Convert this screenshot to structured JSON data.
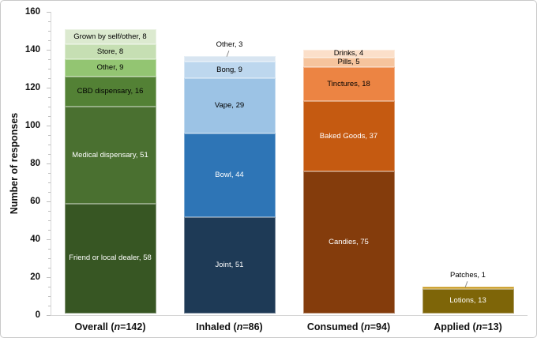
{
  "figure": {
    "background": "#ffffff",
    "border_color": "#c9c9c9"
  },
  "chart_data": {
    "type": "bar",
    "stacked": true,
    "title": "",
    "xlabel": "",
    "ylabel": "Number of responses",
    "ylim": [
      0,
      160
    ],
    "y_major_tick_step": 20,
    "y_minor_tick_step": 5,
    "grid": false,
    "legend": "none",
    "axis_color": "#d6d6d6",
    "tick_color": "#bfbfbf",
    "categories": [
      {
        "label": "Overall",
        "n": "142"
      },
      {
        "label": "Inhaled",
        "n": "86"
      },
      {
        "label": "Consumed",
        "n": "94"
      },
      {
        "label": "Applied",
        "n": "13"
      }
    ],
    "bars": [
      {
        "category": "Overall",
        "segments": [
          {
            "label": "Friend or local dealer",
            "value": 58,
            "color": "#375623",
            "text_color": "#ffffff"
          },
          {
            "label": "Medical dispensary",
            "value": 51,
            "color": "#4a7030",
            "text_color": "#ffffff"
          },
          {
            "label": "CBD dispensary",
            "value": 16,
            "color": "#538135",
            "text_color": "#000000"
          },
          {
            "label": "Other",
            "value": 9,
            "color": "#93c572",
            "text_color": "#000000"
          },
          {
            "label": "Store",
            "value": 8,
            "color": "#c6dfb3",
            "text_color": "#000000"
          },
          {
            "label": "Grown by self/other",
            "value": 8,
            "color": "#dcead0",
            "text_color": "#000000"
          }
        ]
      },
      {
        "category": "Inhaled",
        "segments": [
          {
            "label": "Joint",
            "value": 51,
            "color": "#1e3a56",
            "text_color": "#ffffff"
          },
          {
            "label": "Bowl",
            "value": 44,
            "color": "#2e75b6",
            "text_color": "#ffffff"
          },
          {
            "label": "Vape",
            "value": 29,
            "color": "#9cc3e5",
            "text_color": "#000000"
          },
          {
            "label": "Bong",
            "value": 9,
            "color": "#bdd7ee",
            "text_color": "#000000"
          },
          {
            "label": "Other",
            "value": 3,
            "color": "#d8e5f1",
            "text_color": "#000000",
            "callout": true
          }
        ]
      },
      {
        "category": "Consumed",
        "segments": [
          {
            "label": "Candies",
            "value": 75,
            "color": "#843c0c",
            "text_color": "#ffffff"
          },
          {
            "label": "Baked Goods",
            "value": 37,
            "color": "#c55a11",
            "text_color": "#ffffff"
          },
          {
            "label": "Tinctures",
            "value": 18,
            "color": "#ec8443",
            "text_color": "#000000"
          },
          {
            "label": "Pills",
            "value": 5,
            "color": "#f6c49d",
            "text_color": "#000000"
          },
          {
            "label": "Drinks",
            "value": 4,
            "color": "#fbdfc9",
            "text_color": "#000000"
          }
        ]
      },
      {
        "category": "Applied",
        "segments": [
          {
            "label": "Lotions",
            "value": 13,
            "color": "#7e6508",
            "text_color": "#ffffff"
          },
          {
            "label": "Patches",
            "value": 1,
            "color": "#c3920e",
            "text_color": "#000000",
            "callout": true
          }
        ]
      }
    ]
  }
}
